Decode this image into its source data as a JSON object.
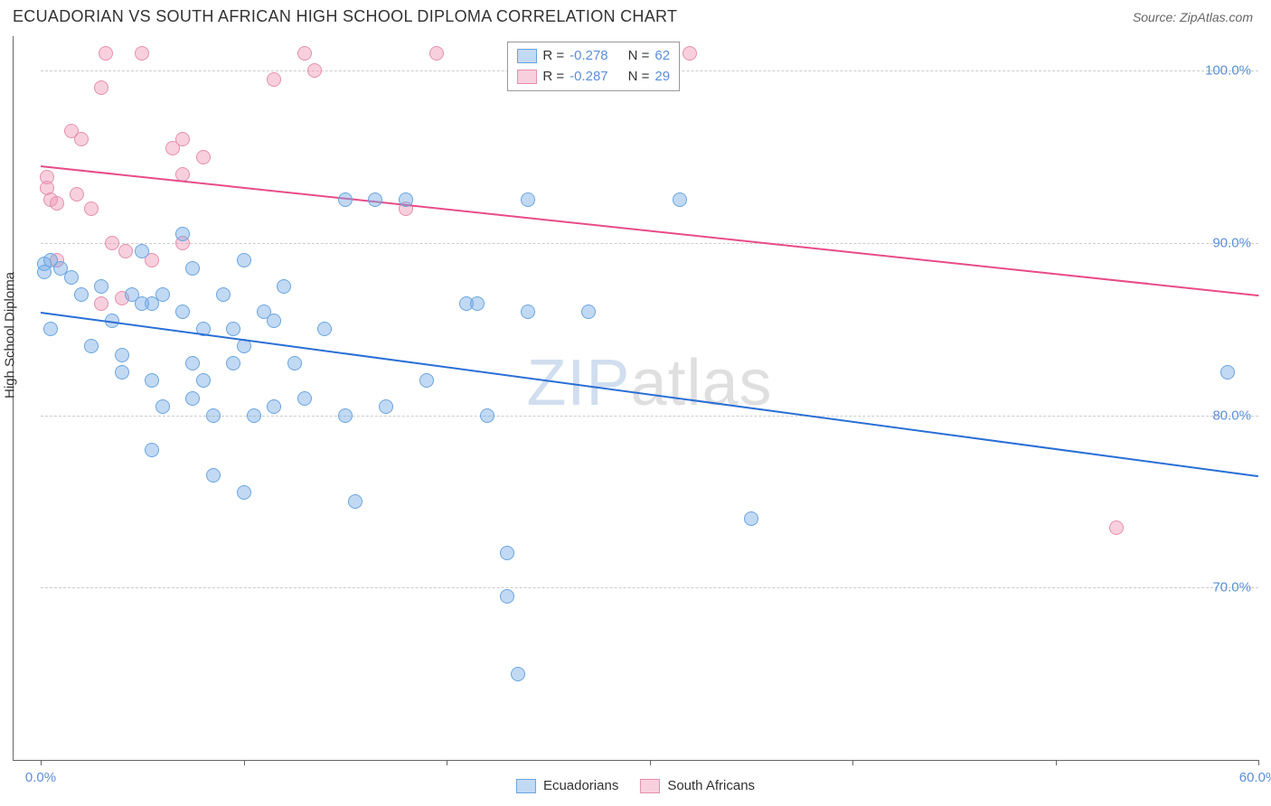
{
  "header": {
    "title": "ECUADORIAN VS SOUTH AFRICAN HIGH SCHOOL DIPLOMA CORRELATION CHART",
    "source_label": "Source: ",
    "source_value": "ZipAtlas.com"
  },
  "axes": {
    "y_label": "High School Diploma",
    "y_min": 60.0,
    "y_max": 102.0,
    "y_ticks": [
      70.0,
      80.0,
      90.0,
      100.0
    ],
    "y_tick_labels": [
      "70.0%",
      "80.0%",
      "90.0%",
      "100.0%"
    ],
    "x_min": 0.0,
    "x_max": 60.0,
    "x_ticks": [
      0,
      10,
      20,
      30,
      40,
      50,
      60
    ],
    "x_tick_labels": [
      "0.0%",
      "",
      "",
      "",
      "",
      "",
      "60.0%"
    ]
  },
  "series": {
    "ecuadorians": {
      "label": "Ecuadorians",
      "color_fill": "rgba(120,170,230,0.45)",
      "color_stroke": "#6aa5de",
      "trend_color": "#2a6fd6",
      "marker_radius": 8,
      "R": "-0.278",
      "N": "62",
      "trend": {
        "x1": 0,
        "y1": 86.0,
        "x2": 60,
        "y2": 76.5
      },
      "points": [
        {
          "x": 0.2,
          "y": 88.8
        },
        {
          "x": 0.2,
          "y": 88.3
        },
        {
          "x": 0.5,
          "y": 89.0
        },
        {
          "x": 0.5,
          "y": 85.0
        },
        {
          "x": 1.0,
          "y": 88.5
        },
        {
          "x": 1.5,
          "y": 88.0
        },
        {
          "x": 2.0,
          "y": 87.0
        },
        {
          "x": 2.5,
          "y": 84.0
        },
        {
          "x": 3.0,
          "y": 87.5
        },
        {
          "x": 3.5,
          "y": 85.5
        },
        {
          "x": 4.0,
          "y": 82.5
        },
        {
          "x": 4.0,
          "y": 83.5
        },
        {
          "x": 4.5,
          "y": 87.0
        },
        {
          "x": 5.0,
          "y": 89.5
        },
        {
          "x": 5.5,
          "y": 86.5
        },
        {
          "x": 5.5,
          "y": 82.0
        },
        {
          "x": 5.5,
          "y": 78.0
        },
        {
          "x": 6.0,
          "y": 87.0
        },
        {
          "x": 6.0,
          "y": 80.5
        },
        {
          "x": 7.0,
          "y": 90.5
        },
        {
          "x": 7.0,
          "y": 86.0
        },
        {
          "x": 7.5,
          "y": 88.5
        },
        {
          "x": 7.5,
          "y": 83.0
        },
        {
          "x": 7.5,
          "y": 81.0
        },
        {
          "x": 8.0,
          "y": 85.0
        },
        {
          "x": 8.0,
          "y": 82.0
        },
        {
          "x": 8.5,
          "y": 80.0
        },
        {
          "x": 8.5,
          "y": 76.5
        },
        {
          "x": 9.0,
          "y": 87.0
        },
        {
          "x": 9.5,
          "y": 85.0
        },
        {
          "x": 9.5,
          "y": 83.0
        },
        {
          "x": 10.0,
          "y": 89.0
        },
        {
          "x": 10.0,
          "y": 84.0
        },
        {
          "x": 10.0,
          "y": 75.5
        },
        {
          "x": 10.5,
          "y": 80.0
        },
        {
          "x": 11.0,
          "y": 86.0
        },
        {
          "x": 11.5,
          "y": 85.5
        },
        {
          "x": 11.5,
          "y": 80.5
        },
        {
          "x": 12.0,
          "y": 87.5
        },
        {
          "x": 12.5,
          "y": 83.0
        },
        {
          "x": 13.0,
          "y": 81.0
        },
        {
          "x": 14.0,
          "y": 85.0
        },
        {
          "x": 15.0,
          "y": 92.5
        },
        {
          "x": 15.0,
          "y": 80.0
        },
        {
          "x": 15.5,
          "y": 75.0
        },
        {
          "x": 16.5,
          "y": 92.5
        },
        {
          "x": 17.0,
          "y": 80.5
        },
        {
          "x": 18.0,
          "y": 92.5
        },
        {
          "x": 19.0,
          "y": 82.0
        },
        {
          "x": 21.0,
          "y": 86.5
        },
        {
          "x": 21.5,
          "y": 86.5
        },
        {
          "x": 22.0,
          "y": 80.0
        },
        {
          "x": 23.0,
          "y": 72.0
        },
        {
          "x": 23.0,
          "y": 69.5
        },
        {
          "x": 23.5,
          "y": 65.0
        },
        {
          "x": 24.0,
          "y": 92.5
        },
        {
          "x": 24.0,
          "y": 86.0
        },
        {
          "x": 27.0,
          "y": 86.0
        },
        {
          "x": 31.5,
          "y": 92.5
        },
        {
          "x": 35.0,
          "y": 74.0
        },
        {
          "x": 58.5,
          "y": 82.5
        },
        {
          "x": 5.0,
          "y": 86.5
        }
      ]
    },
    "south_africans": {
      "label": "South Africans",
      "color_fill": "rgba(240,150,180,0.45)",
      "color_stroke": "#e58fb0",
      "trend_color": "#e84c88",
      "marker_radius": 8,
      "R": "-0.287",
      "N": "29",
      "trend": {
        "x1": 0,
        "y1": 94.5,
        "x2": 60,
        "y2": 87.0
      },
      "points": [
        {
          "x": 0.3,
          "y": 93.8
        },
        {
          "x": 0.3,
          "y": 93.2
        },
        {
          "x": 0.5,
          "y": 92.5
        },
        {
          "x": 0.8,
          "y": 92.3
        },
        {
          "x": 0.8,
          "y": 89.0
        },
        {
          "x": 1.5,
          "y": 96.5
        },
        {
          "x": 1.8,
          "y": 92.8
        },
        {
          "x": 2.0,
          "y": 96.0
        },
        {
          "x": 2.5,
          "y": 92.0
        },
        {
          "x": 3.0,
          "y": 99.0
        },
        {
          "x": 3.0,
          "y": 86.5
        },
        {
          "x": 3.2,
          "y": 101.0
        },
        {
          "x": 3.5,
          "y": 90.0
        },
        {
          "x": 4.0,
          "y": 86.8
        },
        {
          "x": 4.2,
          "y": 89.5
        },
        {
          "x": 5.0,
          "y": 101.0
        },
        {
          "x": 5.5,
          "y": 89.0
        },
        {
          "x": 6.5,
          "y": 95.5
        },
        {
          "x": 7.0,
          "y": 96.0
        },
        {
          "x": 7.0,
          "y": 94.0
        },
        {
          "x": 7.0,
          "y": 90.0
        },
        {
          "x": 8.0,
          "y": 95.0
        },
        {
          "x": 11.5,
          "y": 99.5
        },
        {
          "x": 13.0,
          "y": 101.0
        },
        {
          "x": 13.5,
          "y": 100.0
        },
        {
          "x": 18.0,
          "y": 92.0
        },
        {
          "x": 19.5,
          "y": 101.0
        },
        {
          "x": 32.0,
          "y": 101.0
        },
        {
          "x": 53.0,
          "y": 73.5
        }
      ]
    }
  },
  "legend_stats": {
    "R_label": "R = ",
    "N_label": "N = "
  },
  "footer_legend": {
    "items": [
      "ecuadorians",
      "south_africans"
    ]
  },
  "watermark": {
    "part1": "ZIP",
    "part2": "atlas"
  },
  "style": {
    "background": "#ffffff",
    "grid_color": "#cccccc",
    "axis_color": "#666666",
    "tick_label_color": "#5b8fd6",
    "title_color": "#333333"
  }
}
